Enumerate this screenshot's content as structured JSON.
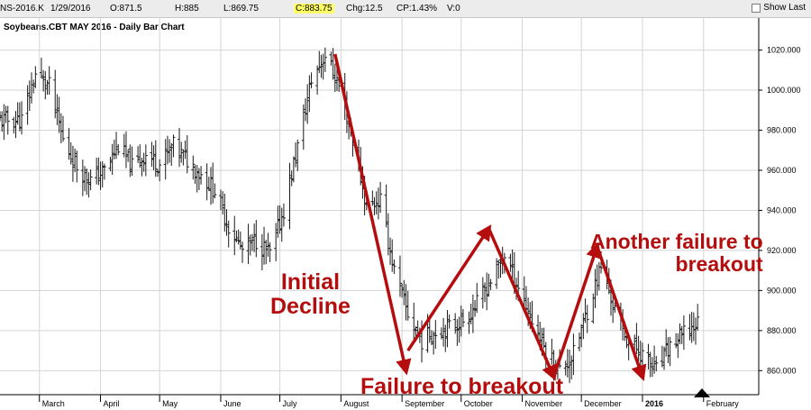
{
  "header": {
    "symbol": "NS-2016.K",
    "date": "1/29/2016",
    "open": "O:871.5",
    "high": "H:885",
    "low": "L:869.75",
    "close": "C:883.75",
    "change": "Chg:12.5",
    "change_pct": "CP:1.43%",
    "volume": "V:0",
    "show_last_label": "Show Last"
  },
  "colors": {
    "annotation": "#b50d0d",
    "bars": "#1a1a1a",
    "grid": "#d4d4d4",
    "highlight": "#ffff66"
  },
  "chart_data": {
    "type": "ohlc",
    "title": "Soybeans.CBT MAY 2016 - Daily Bar Chart",
    "ylim": [
      848,
      1036
    ],
    "y_ticks": [
      "1020.000",
      "1000.000",
      "980.000",
      "960.000",
      "940.000",
      "920.000",
      "900.000",
      "880.000",
      "860.000"
    ],
    "x_ticks": [
      "March",
      "April",
      "May",
      "June",
      "July",
      "August",
      "September",
      "October",
      "November",
      "December",
      "2016",
      "February"
    ],
    "grid": true,
    "series": [
      {
        "approx_closes": [
          {
            "date": "2015-02-20",
            "value": 985
          },
          {
            "date": "2015-02-27",
            "value": 1008
          },
          {
            "date": "2015-03-06",
            "value": 1002
          },
          {
            "date": "2015-03-13",
            "value": 975
          },
          {
            "date": "2015-03-20",
            "value": 962
          },
          {
            "date": "2015-03-27",
            "value": 955
          },
          {
            "date": "2015-04-03",
            "value": 960
          },
          {
            "date": "2015-04-10",
            "value": 972
          },
          {
            "date": "2015-04-17",
            "value": 962
          },
          {
            "date": "2015-04-24",
            "value": 968
          },
          {
            "date": "2015-05-01",
            "value": 963
          },
          {
            "date": "2015-05-08",
            "value": 972
          },
          {
            "date": "2015-05-15",
            "value": 965
          },
          {
            "date": "2015-05-22",
            "value": 958
          },
          {
            "date": "2015-05-29",
            "value": 950
          },
          {
            "date": "2015-06-05",
            "value": 932
          },
          {
            "date": "2015-06-12",
            "value": 920
          },
          {
            "date": "2015-06-19",
            "value": 925
          },
          {
            "date": "2015-06-26",
            "value": 918
          },
          {
            "date": "2015-07-03",
            "value": 940
          },
          {
            "date": "2015-07-10",
            "value": 972
          },
          {
            "date": "2015-07-17",
            "value": 1005
          },
          {
            "date": "2015-07-24",
            "value": 1018
          },
          {
            "date": "2015-07-31",
            "value": 1002
          },
          {
            "date": "2015-08-07",
            "value": 975
          },
          {
            "date": "2015-08-14",
            "value": 942
          },
          {
            "date": "2015-08-21",
            "value": 945
          },
          {
            "date": "2015-08-28",
            "value": 910
          },
          {
            "date": "2015-09-04",
            "value": 888
          },
          {
            "date": "2015-09-11",
            "value": 875
          },
          {
            "date": "2015-09-18",
            "value": 880
          },
          {
            "date": "2015-09-25",
            "value": 882
          },
          {
            "date": "2015-10-02",
            "value": 885
          },
          {
            "date": "2015-10-09",
            "value": 893
          },
          {
            "date": "2015-10-16",
            "value": 905
          },
          {
            "date": "2015-10-23",
            "value": 918
          },
          {
            "date": "2015-10-30",
            "value": 902
          },
          {
            "date": "2015-11-06",
            "value": 885
          },
          {
            "date": "2015-11-13",
            "value": 870
          },
          {
            "date": "2015-11-20",
            "value": 860
          },
          {
            "date": "2015-11-27",
            "value": 868
          },
          {
            "date": "2015-12-04",
            "value": 890
          },
          {
            "date": "2015-12-11",
            "value": 912
          },
          {
            "date": "2015-12-18",
            "value": 890
          },
          {
            "date": "2015-12-25",
            "value": 874
          },
          {
            "date": "2016-01-01",
            "value": 868
          },
          {
            "date": "2016-01-08",
            "value": 860
          },
          {
            "date": "2016-01-15",
            "value": 872
          },
          {
            "date": "2016-01-22",
            "value": 878
          },
          {
            "date": "2016-01-29",
            "value": 883.75
          }
        ]
      }
    ],
    "arrows": [
      {
        "label": "Initial Decline",
        "from": {
          "date": "2015-07-29",
          "value": 1018
        },
        "to": {
          "date": "2015-09-03",
          "value": 860
        }
      },
      {
        "label": "Failure to breakout (up)",
        "from": {
          "date": "2015-09-04",
          "value": 870
        },
        "to": {
          "date": "2015-10-15",
          "value": 931
        }
      },
      {
        "label": "Failure to breakout (down)",
        "from": {
          "date": "2015-10-15",
          "value": 931
        },
        "to": {
          "date": "2015-11-17",
          "value": 857
        }
      },
      {
        "label": "Another failure (up)",
        "from": {
          "date": "2015-11-17",
          "value": 857
        },
        "to": {
          "date": "2015-12-09",
          "value": 922
        }
      },
      {
        "label": "Another failure (down)",
        "from": {
          "date": "2015-12-09",
          "value": 922
        },
        "to": {
          "date": "2016-01-01",
          "value": 857
        }
      }
    ]
  },
  "annotations": {
    "initial_decline_line1": "Initial",
    "initial_decline_line2": "Decline",
    "failure_to_breakout": "Failure to breakout",
    "another_failure_line1": "Another failure to",
    "another_failure_line2": "breakout"
  }
}
